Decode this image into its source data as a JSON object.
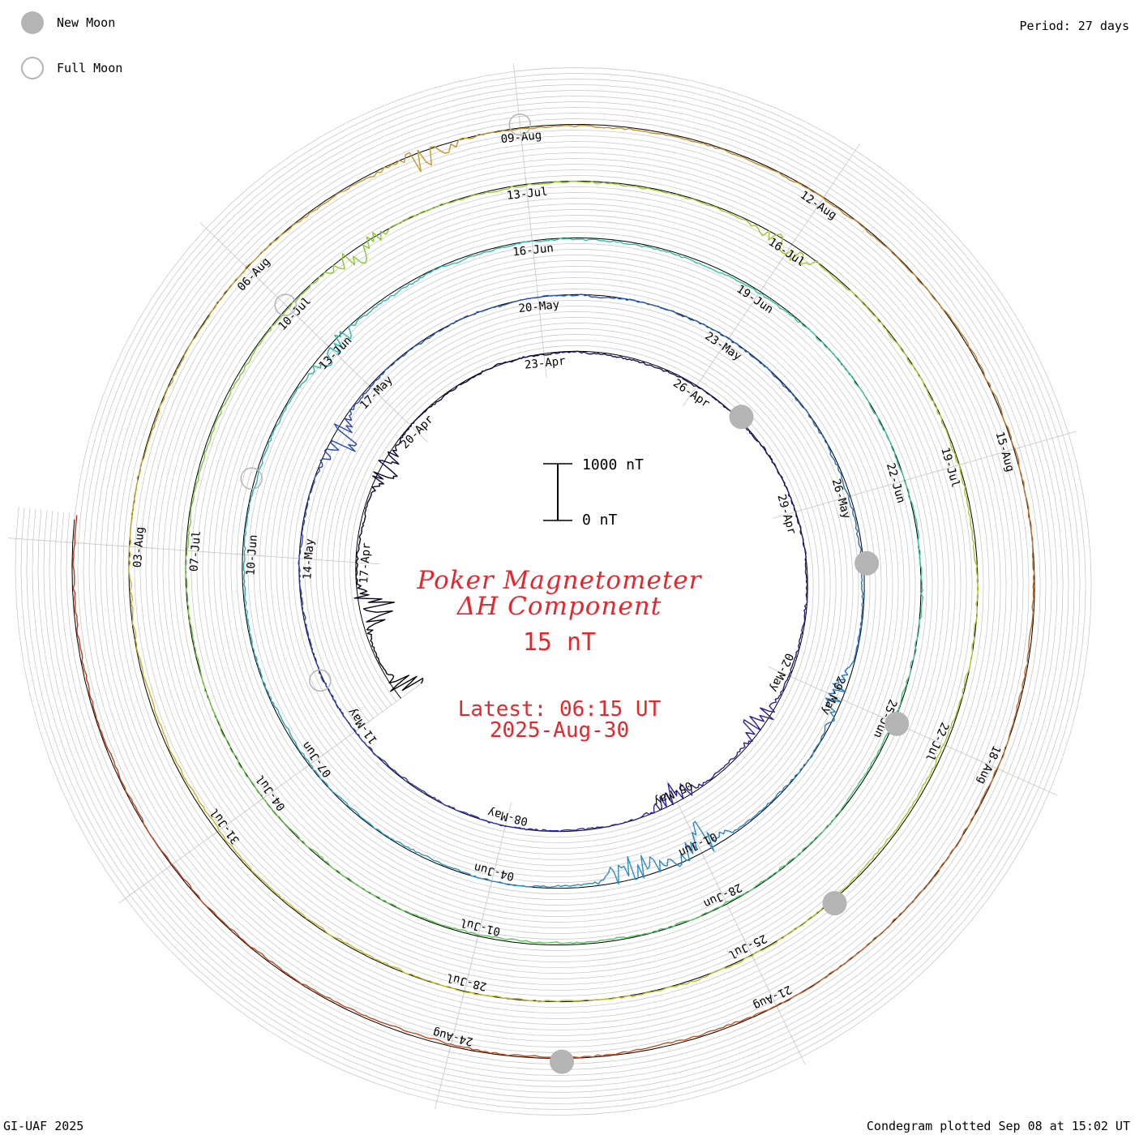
{
  "header": {
    "new_moon_label": "New Moon",
    "full_moon_label": "Full Moon",
    "period_label": "Period: 27 days"
  },
  "footer": {
    "credit": "GI-UAF 2025",
    "plotted": "Condegram plotted Sep 08 at 15:02 UT"
  },
  "colors": {
    "title": "#e8252b",
    "moon_new": "#b4b4b4",
    "moon_full_stroke": "#b4b4b4",
    "grid": "#c8c8c8",
    "baseline": "#000000"
  },
  "chart_data": {
    "type": "condegram",
    "title": "Poker Magnetometer",
    "subtitle": "ΔH Component",
    "value_text": "15 nT",
    "latest_label": "Latest: 06:15 UT",
    "latest_date": "2025-Aug-30",
    "scale_top_label": "1000 nT",
    "scale_bottom_label": "0 nT",
    "period_days": 27,
    "start_date": "2025-04-14",
    "end_date": "2025-08-30",
    "date_ticks": [
      "17-Apr",
      "20-Apr",
      "23-Apr",
      "26-Apr",
      "29-Apr",
      "02-May",
      "05-May",
      "08-May",
      "11-May",
      "14-May",
      "17-May",
      "20-May",
      "23-May",
      "26-May",
      "29-May",
      "01-Jun",
      "04-Jun",
      "07-Jun",
      "10-Jun",
      "13-Jun",
      "16-Jun",
      "19-Jun",
      "22-Jun",
      "25-Jun",
      "28-Jun",
      "01-Jul",
      "04-Jul",
      "07-Jul",
      "10-Jul",
      "13-Jul",
      "16-Jul",
      "19-Jul",
      "22-Jul",
      "25-Jul",
      "28-Jul",
      "31-Jul",
      "03-Aug",
      "06-Aug",
      "09-Aug",
      "12-Aug",
      "15-Aug",
      "18-Aug",
      "21-Aug",
      "24-Aug"
    ],
    "new_moons": [
      "2025-04-27",
      "2025-05-27",
      "2025-06-25",
      "2025-07-24",
      "2025-08-23"
    ],
    "full_moons": [
      "2025-05-12",
      "2025-06-11",
      "2025-07-10",
      "2025-08-09"
    ],
    "series_colors": [
      "#000000",
      "#1a0a50",
      "#2a1f96",
      "#2a3cc8",
      "#2060c0",
      "#2a8cc8",
      "#28b4b4",
      "#34c890",
      "#5cc850",
      "#8cc832",
      "#b4c828",
      "#c8b428",
      "#c88c28",
      "#c85a1e",
      "#c83214"
    ],
    "disturbances": [
      {
        "date": "2025-04-14",
        "magnitude_nT": 900
      },
      {
        "date": "2025-04-16",
        "magnitude_nT": 700
      },
      {
        "date": "2025-04-19",
        "magnitude_nT": 450
      },
      {
        "date": "2025-05-03",
        "magnitude_nT": 400
      },
      {
        "date": "2025-05-05",
        "magnitude_nT": 420
      },
      {
        "date": "2025-05-16",
        "magnitude_nT": 500
      },
      {
        "date": "2025-05-29",
        "magnitude_nT": 300
      },
      {
        "date": "2025-06-01",
        "magnitude_nT": 600
      },
      {
        "date": "2025-06-02",
        "magnitude_nT": 550
      },
      {
        "date": "2025-06-13",
        "magnitude_nT": 350
      },
      {
        "date": "2025-07-11",
        "magnitude_nT": 320
      },
      {
        "date": "2025-07-16",
        "magnitude_nT": 280
      },
      {
        "date": "2025-08-08",
        "magnitude_nT": 300
      }
    ]
  }
}
